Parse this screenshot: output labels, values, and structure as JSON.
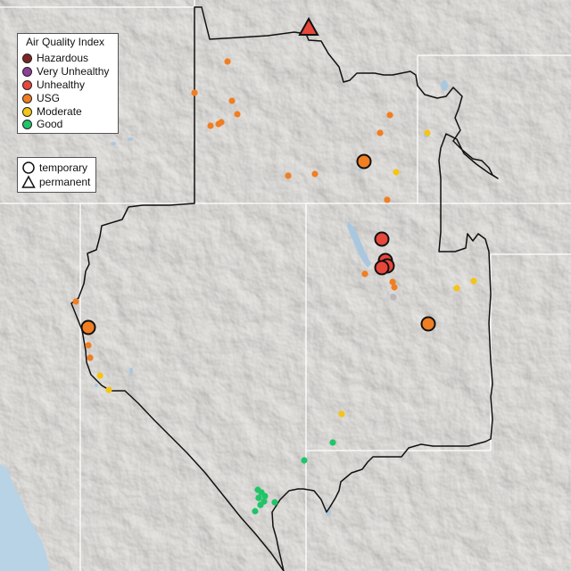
{
  "legend": {
    "title": "Air Quality Index",
    "categories": [
      {
        "label": "Hazardous",
        "color": "#7e2525"
      },
      {
        "label": "Very Unhealthy",
        "color": "#8f3f97"
      },
      {
        "label": "Unhealthy",
        "color": "#e8473b"
      },
      {
        "label": "USG",
        "color": "#f07e22"
      },
      {
        "label": "Moderate",
        "color": "#f4c417"
      },
      {
        "label": "Good",
        "color": "#21c468"
      }
    ]
  },
  "monitor_type_legend": {
    "items": [
      {
        "label": "temporary",
        "symbol": "circle-icon"
      },
      {
        "label": "permanent",
        "symbol": "triangle-icon"
      }
    ]
  },
  "map_colors": {
    "land": "#e6e4e1",
    "water": "#a9c8e0",
    "ocean": "#b8d3e6",
    "state_border": "#ffffff",
    "region_outline": "#111111"
  }
}
